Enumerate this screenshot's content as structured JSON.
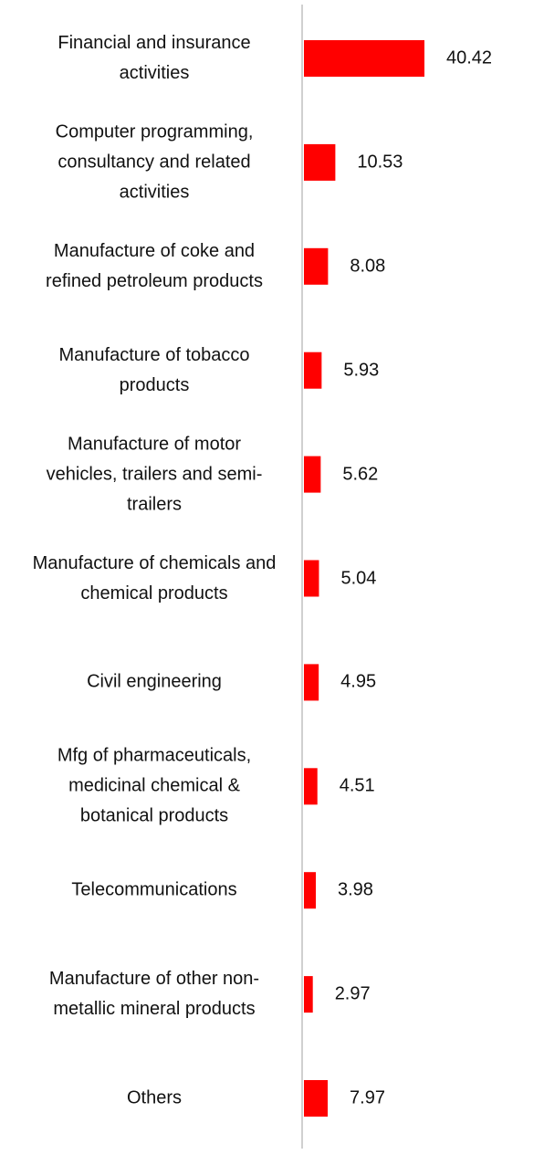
{
  "chart_data": {
    "type": "bar",
    "orientation": "horizontal",
    "categories": [
      "Financial and insurance activities",
      "Computer programming, consultancy and related activities",
      "Manufacture of coke and refined petroleum products",
      "Manufacture of tobacco products",
      "Manufacture of motor vehicles, trailers and semi-trailers",
      "Manufacture of chemicals and chemical products",
      "Civil engineering",
      "Mfg of pharmaceuticals, medicinal chemical & botanical products",
      "Telecommunications",
      "Manufacture of other non-metallic mineral products",
      "Others"
    ],
    "values": [
      40.42,
      10.53,
      8.08,
      5.93,
      5.62,
      5.04,
      4.95,
      4.51,
      3.98,
      2.97,
      7.97
    ],
    "color": "#ff0000"
  }
}
